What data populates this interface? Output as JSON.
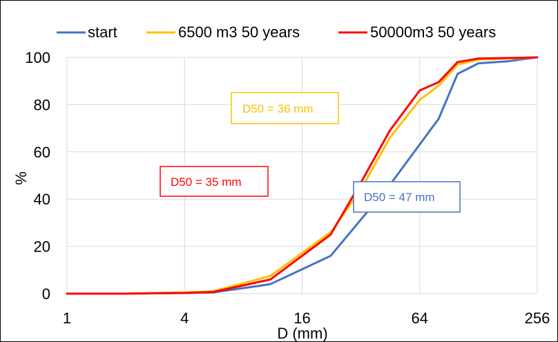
{
  "chart_data": {
    "type": "line",
    "title": "",
    "xlabel": "D (mm)",
    "ylabel": "%",
    "x_scale": "log2",
    "xlim": [
      1,
      256
    ],
    "ylim": [
      0,
      100
    ],
    "x_ticks": [
      1,
      4,
      16,
      64,
      256
    ],
    "x_tick_labels": [
      "1",
      "4",
      "16",
      "64",
      "256"
    ],
    "y_ticks": [
      0,
      20,
      40,
      60,
      80,
      100
    ],
    "y_tick_labels": [
      "0",
      "20",
      "40",
      "60",
      "80",
      "100"
    ],
    "grid": {
      "x": true,
      "y": true
    },
    "legend_position": "top",
    "series": [
      {
        "name": "start",
        "color": "#4472C4",
        "x": [
          1,
          2,
          4,
          5.6,
          11,
          22.4,
          45,
          80,
          100,
          128,
          180,
          256
        ],
        "y": [
          0,
          0,
          0.3,
          0.5,
          4,
          16,
          46,
          74,
          93,
          97.5,
          98.3,
          100
        ]
      },
      {
        "name": "6500 m3 50 years",
        "color": "#FFC000",
        "x": [
          1,
          2,
          4,
          5.6,
          11,
          22.4,
          32,
          45,
          64,
          80,
          100,
          128,
          180,
          256
        ],
        "y": [
          0,
          0,
          0.5,
          1,
          7.5,
          26,
          44,
          66,
          82,
          88,
          97,
          99,
          99.5,
          100
        ]
      },
      {
        "name": "50000m3 50 years",
        "color": "#FF0000",
        "x": [
          1,
          2,
          4,
          5.6,
          11,
          22.4,
          32,
          45,
          64,
          80,
          100,
          128,
          180,
          256
        ],
        "y": [
          0,
          0,
          0.3,
          0.7,
          6,
          25,
          47,
          69,
          86,
          89.5,
          98,
          99.5,
          99.7,
          100
        ]
      }
    ],
    "annotations": [
      {
        "text": "D50 = 36 mm",
        "color": "#FFC000"
      },
      {
        "text": "D50 = 35 mm",
        "color": "#FF0000"
      },
      {
        "text": "D50 = 47 mm",
        "color": "#4472C4"
      }
    ]
  }
}
